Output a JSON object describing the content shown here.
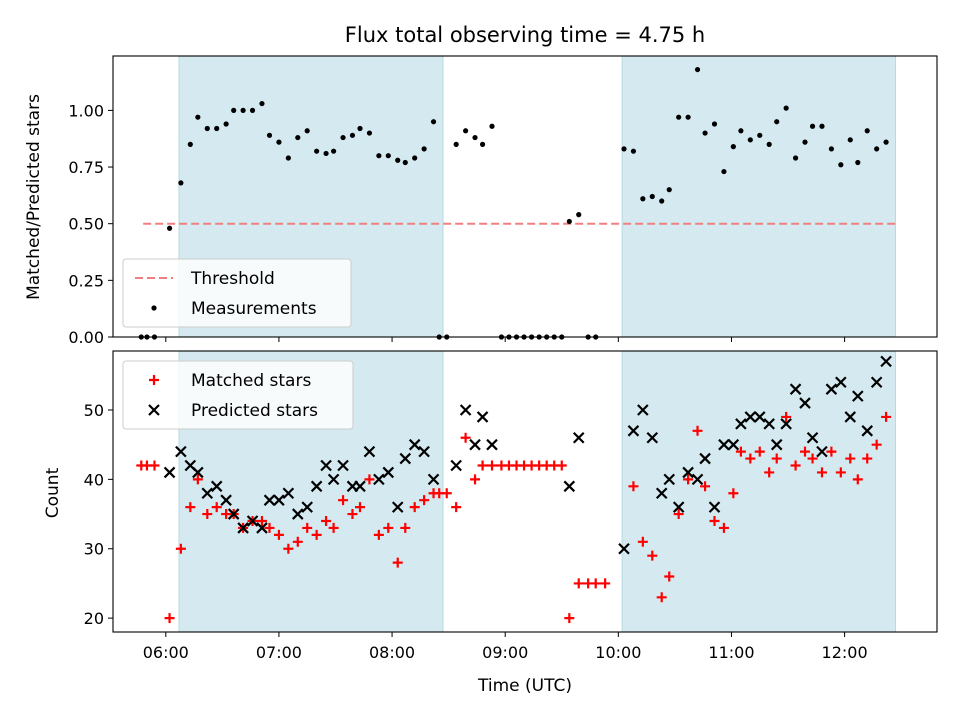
{
  "chart_data": {
    "title": "Flux total observing time = 4.75 h",
    "xlabel": "Time (UTC)",
    "x_ticks": [
      "06:00",
      "07:00",
      "08:00",
      "09:00",
      "10:00",
      "11:00",
      "12:00"
    ],
    "x_range": [
      "05:32",
      "12:49"
    ],
    "shaded_intervals": [
      [
        "06:07",
        "08:27"
      ],
      [
        "10:02",
        "12:27"
      ]
    ],
    "shade_color": "#d4eaf0",
    "panels": [
      {
        "type": "scatter",
        "ylabel": "Matched/Predicted stars",
        "ylim": [
          0.0,
          1.24
        ],
        "y_ticks": [
          "0.00",
          "0.25",
          "0.50",
          "0.75",
          "1.00"
        ],
        "legend_position": "lower-left",
        "threshold": {
          "name": "Threshold",
          "value": 0.5,
          "x_range": [
            "05:48",
            "12:27"
          ],
          "color": "#f08080",
          "style": "dashed"
        },
        "series": [
          {
            "name": "Measurements",
            "marker": "dot",
            "color": "#000000",
            "points": [
              [
                "05:47",
                0.0
              ],
              [
                "05:50",
                0.0
              ],
              [
                "05:54",
                0.0
              ],
              [
                "06:02",
                0.48
              ],
              [
                "06:08",
                0.68
              ],
              [
                "06:13",
                0.85
              ],
              [
                "06:17",
                0.97
              ],
              [
                "06:22",
                0.92
              ],
              [
                "06:27",
                0.92
              ],
              [
                "06:32",
                0.94
              ],
              [
                "06:36",
                1.0
              ],
              [
                "06:41",
                1.0
              ],
              [
                "06:46",
                1.0
              ],
              [
                "06:51",
                1.03
              ],
              [
                "06:55",
                0.89
              ],
              [
                "07:00",
                0.86
              ],
              [
                "07:05",
                0.79
              ],
              [
                "07:10",
                0.88
              ],
              [
                "07:15",
                0.91
              ],
              [
                "07:20",
                0.82
              ],
              [
                "07:25",
                0.81
              ],
              [
                "07:29",
                0.82
              ],
              [
                "07:34",
                0.88
              ],
              [
                "07:39",
                0.89
              ],
              [
                "07:43",
                0.92
              ],
              [
                "07:48",
                0.9
              ],
              [
                "07:53",
                0.8
              ],
              [
                "07:58",
                0.8
              ],
              [
                "08:03",
                0.78
              ],
              [
                "08:07",
                0.77
              ],
              [
                "08:12",
                0.79
              ],
              [
                "08:17",
                0.83
              ],
              [
                "08:22",
                0.95
              ],
              [
                "08:25",
                0.0
              ],
              [
                "08:29",
                0.0
              ],
              [
                "08:34",
                0.85
              ],
              [
                "08:39",
                0.91
              ],
              [
                "08:44",
                0.88
              ],
              [
                "08:48",
                0.85
              ],
              [
                "08:53",
                0.93
              ],
              [
                "08:58",
                0.0
              ],
              [
                "09:02",
                0.0
              ],
              [
                "09:06",
                0.0
              ],
              [
                "09:10",
                0.0
              ],
              [
                "09:14",
                0.0
              ],
              [
                "09:18",
                0.0
              ],
              [
                "09:22",
                0.0
              ],
              [
                "09:26",
                0.0
              ],
              [
                "09:30",
                0.0
              ],
              [
                "09:34",
                0.51
              ],
              [
                "09:39",
                0.54
              ],
              [
                "09:44",
                0.0
              ],
              [
                "09:48",
                0.0
              ],
              [
                "10:03",
                0.83
              ],
              [
                "10:08",
                0.82
              ],
              [
                "10:13",
                0.61
              ],
              [
                "10:18",
                0.62
              ],
              [
                "10:23",
                0.6
              ],
              [
                "10:27",
                0.65
              ],
              [
                "10:32",
                0.97
              ],
              [
                "10:37",
                0.97
              ],
              [
                "10:42",
                1.18
              ],
              [
                "10:46",
                0.9
              ],
              [
                "10:51",
                0.94
              ],
              [
                "10:56",
                0.73
              ],
              [
                "11:01",
                0.84
              ],
              [
                "11:05",
                0.91
              ],
              [
                "11:10",
                0.87
              ],
              [
                "11:15",
                0.89
              ],
              [
                "11:20",
                0.85
              ],
              [
                "11:24",
                0.95
              ],
              [
                "11:29",
                1.01
              ],
              [
                "11:34",
                0.79
              ],
              [
                "11:39",
                0.86
              ],
              [
                "11:43",
                0.93
              ],
              [
                "11:48",
                0.93
              ],
              [
                "11:53",
                0.83
              ],
              [
                "11:58",
                0.76
              ],
              [
                "12:03",
                0.87
              ],
              [
                "12:07",
                0.77
              ],
              [
                "12:12",
                0.91
              ],
              [
                "12:17",
                0.83
              ],
              [
                "12:22",
                0.86
              ]
            ]
          }
        ]
      },
      {
        "type": "scatter",
        "ylabel": "Count",
        "ylim": [
          18,
          58.5
        ],
        "y_ticks": [
          "20",
          "30",
          "40",
          "50"
        ],
        "legend_position": "upper-left",
        "series": [
          {
            "name": "Matched stars",
            "marker": "plus",
            "color": "#ff0000",
            "points": [
              [
                "05:47",
                42
              ],
              [
                "05:50",
                42
              ],
              [
                "05:54",
                42
              ],
              [
                "06:02",
                20
              ],
              [
                "06:08",
                30
              ],
              [
                "06:13",
                36
              ],
              [
                "06:17",
                40
              ],
              [
                "06:22",
                35
              ],
              [
                "06:27",
                36
              ],
              [
                "06:32",
                35
              ],
              [
                "06:36",
                35
              ],
              [
                "06:41",
                33
              ],
              [
                "06:46",
                34
              ],
              [
                "06:51",
                34
              ],
              [
                "06:55",
                33
              ],
              [
                "07:00",
                32
              ],
              [
                "07:05",
                30
              ],
              [
                "07:10",
                31
              ],
              [
                "07:15",
                33
              ],
              [
                "07:20",
                32
              ],
              [
                "07:25",
                34
              ],
              [
                "07:29",
                33
              ],
              [
                "07:34",
                37
              ],
              [
                "07:39",
                35
              ],
              [
                "07:43",
                36
              ],
              [
                "07:48",
                40
              ],
              [
                "07:53",
                32
              ],
              [
                "07:58",
                33
              ],
              [
                "08:03",
                28
              ],
              [
                "08:07",
                33
              ],
              [
                "08:12",
                36
              ],
              [
                "08:17",
                37
              ],
              [
                "08:22",
                38
              ],
              [
                "08:25",
                38
              ],
              [
                "08:29",
                38
              ],
              [
                "08:34",
                36
              ],
              [
                "08:39",
                46
              ],
              [
                "08:44",
                40
              ],
              [
                "08:48",
                42
              ],
              [
                "08:53",
                42
              ],
              [
                "08:58",
                42
              ],
              [
                "09:02",
                42
              ],
              [
                "09:06",
                42
              ],
              [
                "09:10",
                42
              ],
              [
                "09:14",
                42
              ],
              [
                "09:18",
                42
              ],
              [
                "09:22",
                42
              ],
              [
                "09:26",
                42
              ],
              [
                "09:30",
                42
              ],
              [
                "09:34",
                20
              ],
              [
                "09:39",
                25
              ],
              [
                "09:44",
                25
              ],
              [
                "09:48",
                25
              ],
              [
                "09:53",
                25
              ],
              [
                "10:08",
                39
              ],
              [
                "10:13",
                31
              ],
              [
                "10:18",
                29
              ],
              [
                "10:23",
                23
              ],
              [
                "10:27",
                26
              ],
              [
                "10:32",
                35
              ],
              [
                "10:37",
                40
              ],
              [
                "10:42",
                47
              ],
              [
                "10:46",
                39
              ],
              [
                "10:51",
                34
              ],
              [
                "10:56",
                33
              ],
              [
                "11:01",
                38
              ],
              [
                "11:05",
                44
              ],
              [
                "11:10",
                43
              ],
              [
                "11:15",
                44
              ],
              [
                "11:20",
                41
              ],
              [
                "11:24",
                43
              ],
              [
                "11:29",
                49
              ],
              [
                "11:34",
                42
              ],
              [
                "11:39",
                44
              ],
              [
                "11:43",
                43
              ],
              [
                "11:48",
                41
              ],
              [
                "11:53",
                44
              ],
              [
                "11:58",
                41
              ],
              [
                "12:03",
                43
              ],
              [
                "12:07",
                40
              ],
              [
                "12:12",
                43
              ],
              [
                "12:17",
                45
              ],
              [
                "12:22",
                49
              ]
            ]
          },
          {
            "name": "Predicted stars",
            "marker": "x",
            "color": "#000000",
            "points": [
              [
                "06:02",
                41
              ],
              [
                "06:08",
                44
              ],
              [
                "06:13",
                42
              ],
              [
                "06:17",
                41
              ],
              [
                "06:22",
                38
              ],
              [
                "06:27",
                39
              ],
              [
                "06:32",
                37
              ],
              [
                "06:36",
                35
              ],
              [
                "06:41",
                33
              ],
              [
                "06:46",
                34
              ],
              [
                "06:51",
                33
              ],
              [
                "06:55",
                37
              ],
              [
                "07:00",
                37
              ],
              [
                "07:05",
                38
              ],
              [
                "07:10",
                35
              ],
              [
                "07:15",
                36
              ],
              [
                "07:20",
                39
              ],
              [
                "07:25",
                42
              ],
              [
                "07:29",
                40
              ],
              [
                "07:34",
                42
              ],
              [
                "07:39",
                39
              ],
              [
                "07:43",
                39
              ],
              [
                "07:48",
                44
              ],
              [
                "07:53",
                40
              ],
              [
                "07:58",
                41
              ],
              [
                "08:03",
                36
              ],
              [
                "08:07",
                43
              ],
              [
                "08:12",
                45
              ],
              [
                "08:17",
                44
              ],
              [
                "08:22",
                40
              ],
              [
                "08:34",
                42
              ],
              [
                "08:39",
                50
              ],
              [
                "08:44",
                45
              ],
              [
                "08:48",
                49
              ],
              [
                "08:53",
                45
              ],
              [
                "09:34",
                39
              ],
              [
                "09:39",
                46
              ],
              [
                "10:03",
                30
              ],
              [
                "10:08",
                47
              ],
              [
                "10:13",
                50
              ],
              [
                "10:18",
                46
              ],
              [
                "10:23",
                38
              ],
              [
                "10:27",
                40
              ],
              [
                "10:32",
                36
              ],
              [
                "10:37",
                41
              ],
              [
                "10:42",
                40
              ],
              [
                "10:46",
                43
              ],
              [
                "10:51",
                36
              ],
              [
                "10:56",
                45
              ],
              [
                "11:01",
                45
              ],
              [
                "11:05",
                48
              ],
              [
                "11:10",
                49
              ],
              [
                "11:15",
                49
              ],
              [
                "11:20",
                48
              ],
              [
                "11:24",
                45
              ],
              [
                "11:29",
                48
              ],
              [
                "11:34",
                53
              ],
              [
                "11:39",
                51
              ],
              [
                "11:43",
                46
              ],
              [
                "11:48",
                44
              ],
              [
                "11:53",
                53
              ],
              [
                "11:58",
                54
              ],
              [
                "12:03",
                49
              ],
              [
                "12:07",
                52
              ],
              [
                "12:12",
                47
              ],
              [
                "12:17",
                54
              ],
              [
                "12:22",
                57
              ]
            ]
          }
        ]
      }
    ]
  }
}
